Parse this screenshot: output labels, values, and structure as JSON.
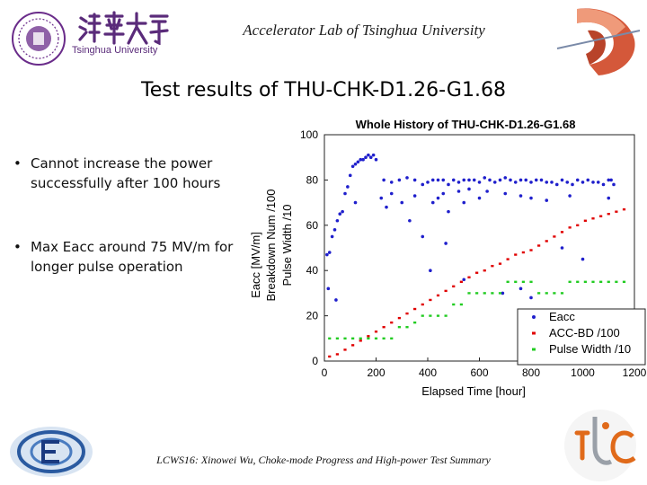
{
  "header": {
    "title": "Accelerator Lab of Tsinghua University",
    "logo_text": "Tsinghua University",
    "brand_color": "#6a2c8a"
  },
  "slide": {
    "title": "Test results of THU-CHK-D1.26-G1.68",
    "bullets": [
      "Cannot increase the power successfully after 100 hours",
      "Max Eacc around 75 MV/m for longer pulse operation"
    ],
    "footer": "LCWS16: Xinowei Wu, Choke-mode Progress and High-power Test Summary"
  },
  "chart_data": {
    "type": "scatter",
    "title": "Whole History of THU-CHK-D1.26-G1.68",
    "xlabel": "Elapsed Time [hour]",
    "ylabel_lines": [
      "Eacc [MV/m]",
      "Breakdown Num /100",
      "Pulse Width /10"
    ],
    "xlim": [
      0,
      1200
    ],
    "ylim": [
      0,
      100
    ],
    "xticks": [
      0,
      200,
      400,
      600,
      800,
      1000,
      1200
    ],
    "yticks": [
      0,
      20,
      40,
      60,
      80,
      100
    ],
    "grid": false,
    "legend_position": "bottom-right",
    "series": [
      {
        "name": "Eacc",
        "color": "#1f1fcc",
        "points": [
          [
            10,
            47
          ],
          [
            20,
            48
          ],
          [
            30,
            55
          ],
          [
            40,
            58
          ],
          [
            50,
            62
          ],
          [
            60,
            65
          ],
          [
            70,
            66
          ],
          [
            80,
            74
          ],
          [
            90,
            77
          ],
          [
            100,
            82
          ],
          [
            110,
            86
          ],
          [
            120,
            87
          ],
          [
            130,
            88
          ],
          [
            140,
            89
          ],
          [
            150,
            89
          ],
          [
            160,
            90
          ],
          [
            170,
            91
          ],
          [
            180,
            90
          ],
          [
            190,
            91
          ],
          [
            200,
            89
          ],
          [
            230,
            80
          ],
          [
            260,
            79
          ],
          [
            290,
            80
          ],
          [
            320,
            81
          ],
          [
            350,
            80
          ],
          [
            380,
            78
          ],
          [
            400,
            79
          ],
          [
            420,
            80
          ],
          [
            440,
            80
          ],
          [
            460,
            80
          ],
          [
            480,
            78
          ],
          [
            500,
            80
          ],
          [
            520,
            79
          ],
          [
            540,
            80
          ],
          [
            560,
            80
          ],
          [
            580,
            80
          ],
          [
            600,
            79
          ],
          [
            620,
            81
          ],
          [
            640,
            80
          ],
          [
            660,
            79
          ],
          [
            680,
            80
          ],
          [
            700,
            81
          ],
          [
            720,
            80
          ],
          [
            740,
            79
          ],
          [
            760,
            80
          ],
          [
            780,
            80
          ],
          [
            800,
            79
          ],
          [
            820,
            80
          ],
          [
            840,
            80
          ],
          [
            860,
            79
          ],
          [
            880,
            79
          ],
          [
            900,
            78
          ],
          [
            920,
            80
          ],
          [
            940,
            79
          ],
          [
            960,
            78
          ],
          [
            980,
            80
          ],
          [
            1000,
            79
          ],
          [
            1020,
            80
          ],
          [
            1040,
            79
          ],
          [
            1060,
            79
          ],
          [
            1080,
            78
          ],
          [
            1100,
            80
          ],
          [
            1110,
            80
          ],
          [
            1120,
            78
          ],
          [
            220,
            72
          ],
          [
            240,
            68
          ],
          [
            260,
            74
          ],
          [
            300,
            70
          ],
          [
            330,
            62
          ],
          [
            350,
            73
          ],
          [
            380,
            55
          ],
          [
            420,
            70
          ],
          [
            440,
            72
          ],
          [
            460,
            74
          ],
          [
            480,
            66
          ],
          [
            520,
            75
          ],
          [
            540,
            70
          ],
          [
            560,
            76
          ],
          [
            600,
            72
          ],
          [
            630,
            75
          ],
          [
            700,
            74
          ],
          [
            760,
            73
          ],
          [
            800,
            72
          ],
          [
            860,
            71
          ],
          [
            950,
            73
          ],
          [
            1100,
            72
          ],
          [
            15,
            32
          ],
          [
            45,
            27
          ],
          [
            120,
            70
          ],
          [
            410,
            40
          ],
          [
            470,
            52
          ],
          [
            540,
            36
          ],
          [
            690,
            30
          ],
          [
            760,
            32
          ],
          [
            800,
            28
          ],
          [
            920,
            50
          ],
          [
            1000,
            45
          ]
        ]
      },
      {
        "name": "ACC-BD /100",
        "color": "#e00000",
        "points": [
          [
            20,
            2
          ],
          [
            50,
            3
          ],
          [
            80,
            5
          ],
          [
            110,
            7
          ],
          [
            140,
            9
          ],
          [
            170,
            11
          ],
          [
            200,
            13
          ],
          [
            230,
            15
          ],
          [
            260,
            17
          ],
          [
            290,
            19
          ],
          [
            320,
            21
          ],
          [
            350,
            23
          ],
          [
            380,
            25
          ],
          [
            410,
            27
          ],
          [
            440,
            29
          ],
          [
            470,
            31
          ],
          [
            500,
            33
          ],
          [
            530,
            35
          ],
          [
            560,
            37
          ],
          [
            590,
            39
          ],
          [
            620,
            40
          ],
          [
            650,
            42
          ],
          [
            680,
            43
          ],
          [
            710,
            45
          ],
          [
            740,
            47
          ],
          [
            770,
            48
          ],
          [
            800,
            49
          ],
          [
            830,
            51
          ],
          [
            860,
            53
          ],
          [
            890,
            55
          ],
          [
            920,
            57
          ],
          [
            950,
            59
          ],
          [
            980,
            60
          ],
          [
            1010,
            62
          ],
          [
            1040,
            63
          ],
          [
            1070,
            64
          ],
          [
            1100,
            65
          ],
          [
            1130,
            66
          ],
          [
            1160,
            67
          ]
        ]
      },
      {
        "name": "Pulse Width /10",
        "color": "#22cc22",
        "points": [
          [
            20,
            10
          ],
          [
            50,
            10
          ],
          [
            80,
            10
          ],
          [
            110,
            10
          ],
          [
            140,
            10
          ],
          [
            170,
            10
          ],
          [
            200,
            10
          ],
          [
            230,
            10
          ],
          [
            260,
            10
          ],
          [
            290,
            15
          ],
          [
            320,
            15
          ],
          [
            350,
            17
          ],
          [
            380,
            20
          ],
          [
            410,
            20
          ],
          [
            440,
            20
          ],
          [
            470,
            20
          ],
          [
            500,
            25
          ],
          [
            530,
            25
          ],
          [
            560,
            30
          ],
          [
            590,
            30
          ],
          [
            620,
            30
          ],
          [
            650,
            30
          ],
          [
            680,
            30
          ],
          [
            710,
            35
          ],
          [
            740,
            35
          ],
          [
            770,
            35
          ],
          [
            800,
            35
          ],
          [
            830,
            30
          ],
          [
            860,
            30
          ],
          [
            890,
            30
          ],
          [
            920,
            30
          ],
          [
            950,
            35
          ],
          [
            980,
            35
          ],
          [
            1010,
            35
          ],
          [
            1040,
            35
          ],
          [
            1070,
            35
          ],
          [
            1100,
            35
          ],
          [
            1130,
            35
          ],
          [
            1160,
            35
          ]
        ]
      }
    ]
  }
}
